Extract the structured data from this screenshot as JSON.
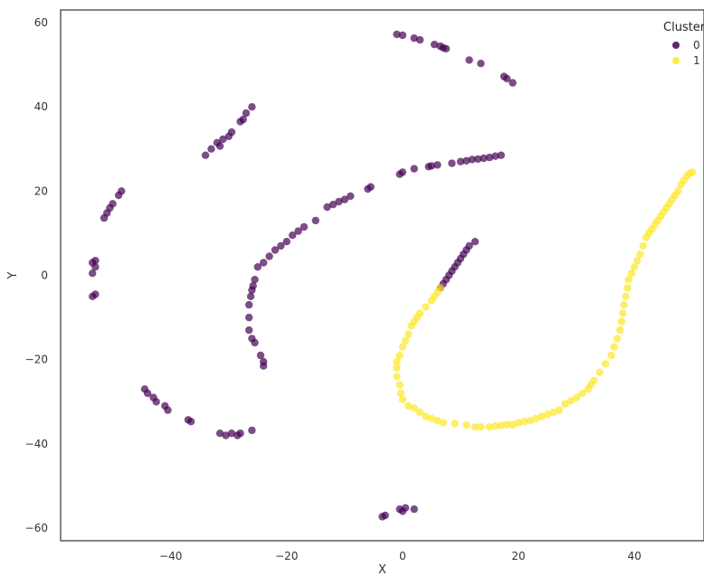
{
  "chart_data": {
    "type": "scatter",
    "title": "",
    "xlabel": "X",
    "ylabel": "Y",
    "xlim": [
      -59,
      52
    ],
    "ylim": [
      -63,
      63
    ],
    "xticks": [
      -40,
      -20,
      0,
      20,
      40
    ],
    "yticks": [
      -60,
      -40,
      -20,
      0,
      20,
      40,
      60
    ],
    "grid": false,
    "legend": {
      "title": "Cluster",
      "placement": "top-right"
    },
    "series": [
      {
        "name": "0",
        "color": "#440154",
        "points": [
          [
            -1,
            57.2
          ],
          [
            0,
            57
          ],
          [
            2,
            56.3
          ],
          [
            3,
            55.9
          ],
          [
            5.5,
            54.8
          ],
          [
            6.5,
            54.4
          ],
          [
            7,
            54
          ],
          [
            7.5,
            53.8
          ],
          [
            11.5,
            51.1
          ],
          [
            13.5,
            50.3
          ],
          [
            17.5,
            47.2
          ],
          [
            18,
            46.7
          ],
          [
            19,
            45.7
          ],
          [
            -26,
            40
          ],
          [
            -27,
            38.5
          ],
          [
            -27.5,
            37
          ],
          [
            -28,
            36.5
          ],
          [
            -29.5,
            34
          ],
          [
            -30,
            33
          ],
          [
            -31,
            32.3
          ],
          [
            -32,
            31.5
          ],
          [
            -31.5,
            30.7
          ],
          [
            -33,
            30
          ],
          [
            -34,
            28.5
          ],
          [
            -48.5,
            20
          ],
          [
            -49,
            19
          ],
          [
            -50,
            17
          ],
          [
            -50.5,
            16
          ],
          [
            -51,
            14.8
          ],
          [
            -51.5,
            13.6
          ],
          [
            -53,
            3.5
          ],
          [
            -53.5,
            3
          ],
          [
            -53,
            2
          ],
          [
            -53.5,
            0.5
          ],
          [
            -53,
            -4.5
          ],
          [
            -53.5,
            -5
          ],
          [
            17,
            28.5
          ],
          [
            16,
            28.3
          ],
          [
            15,
            28
          ],
          [
            14,
            27.8
          ],
          [
            13,
            27.6
          ],
          [
            12,
            27.5
          ],
          [
            11,
            27.2
          ],
          [
            10,
            27
          ],
          [
            8.5,
            26.6
          ],
          [
            6,
            26.2
          ],
          [
            5,
            26
          ],
          [
            4.5,
            25.8
          ],
          [
            2,
            25.3
          ],
          [
            0,
            24.5
          ],
          [
            -0.5,
            24
          ],
          [
            -5.5,
            21
          ],
          [
            -6,
            20.5
          ],
          [
            -9,
            18.8
          ],
          [
            -10,
            18
          ],
          [
            -11,
            17.5
          ],
          [
            -12,
            16.8
          ],
          [
            -13,
            16.2
          ],
          [
            -15,
            13
          ],
          [
            -17,
            11.5
          ],
          [
            -18,
            10.5
          ],
          [
            -19,
            9.5
          ],
          [
            -20,
            8
          ],
          [
            -21,
            7
          ],
          [
            -22,
            6
          ],
          [
            -23,
            4.5
          ],
          [
            -24,
            3
          ],
          [
            -25,
            2
          ],
          [
            -25.5,
            -1
          ],
          [
            -25.8,
            -2.5
          ],
          [
            -26,
            -3.5
          ],
          [
            -26.2,
            -5
          ],
          [
            -26.5,
            -7
          ],
          [
            -26.5,
            -10
          ],
          [
            -26.5,
            -13
          ],
          [
            -26,
            -15
          ],
          [
            -25.5,
            -16
          ],
          [
            -24.5,
            -19
          ],
          [
            -24,
            -20.5
          ],
          [
            -24,
            -21.5
          ],
          [
            12.5,
            8
          ],
          [
            11.5,
            7
          ],
          [
            11,
            6
          ],
          [
            10.5,
            5
          ],
          [
            10,
            4
          ],
          [
            9.5,
            3
          ],
          [
            9,
            2
          ],
          [
            8.5,
            1
          ],
          [
            8,
            0
          ],
          [
            7.5,
            -1
          ],
          [
            7,
            -2
          ],
          [
            6.5,
            -3
          ],
          [
            -44.5,
            -27
          ],
          [
            -44,
            -28
          ],
          [
            -43,
            -29
          ],
          [
            -42.5,
            -30
          ],
          [
            -41,
            -31
          ],
          [
            -40.5,
            -32
          ],
          [
            -37,
            -34.3
          ],
          [
            -36.5,
            -34.7
          ],
          [
            -31.5,
            -37.5
          ],
          [
            -30.5,
            -38
          ],
          [
            -29.5,
            -37.5
          ],
          [
            -28.5,
            -38
          ],
          [
            -28,
            -37.5
          ],
          [
            -26,
            -36.8
          ],
          [
            -0.5,
            -55.5
          ],
          [
            0,
            -56
          ],
          [
            0.5,
            -55.2
          ],
          [
            2,
            -55.5
          ],
          [
            -3,
            -57
          ],
          [
            -3.5,
            -57.3
          ]
        ]
      },
      {
        "name": "1",
        "color": "#fde725",
        "points": [
          [
            6.5,
            -3
          ],
          [
            6,
            -4
          ],
          [
            5.5,
            -5
          ],
          [
            5,
            -6
          ],
          [
            4,
            -7.5
          ],
          [
            3,
            -9
          ],
          [
            2.5,
            -10
          ],
          [
            2,
            -11
          ],
          [
            1.5,
            -12
          ],
          [
            1,
            -14
          ],
          [
            0.5,
            -15.5
          ],
          [
            0,
            -17
          ],
          [
            -0.5,
            -19
          ],
          [
            -1,
            -20.5
          ],
          [
            -1,
            -22
          ],
          [
            -1,
            -24
          ],
          [
            -0.5,
            -26
          ],
          [
            -0.3,
            -28
          ],
          [
            0,
            -29.5
          ],
          [
            1,
            -31
          ],
          [
            2,
            -31.5
          ],
          [
            3,
            -32.5
          ],
          [
            4,
            -33.5
          ],
          [
            5,
            -34
          ],
          [
            6,
            -34.5
          ],
          [
            7,
            -35
          ],
          [
            9,
            -35.2
          ],
          [
            11,
            -35.5
          ],
          [
            12.5,
            -36
          ],
          [
            13.5,
            -36
          ],
          [
            15,
            -36
          ],
          [
            16,
            -35.8
          ],
          [
            17,
            -35.6
          ],
          [
            18,
            -35.4
          ],
          [
            19,
            -35.5
          ],
          [
            20,
            -35
          ],
          [
            21,
            -34.7
          ],
          [
            22,
            -34.5
          ],
          [
            23,
            -34
          ],
          [
            24,
            -33.5
          ],
          [
            25,
            -33
          ],
          [
            26,
            -32.5
          ],
          [
            27,
            -32
          ],
          [
            28,
            -30.5
          ],
          [
            29,
            -29.8
          ],
          [
            30,
            -29
          ],
          [
            31,
            -28
          ],
          [
            32,
            -27
          ],
          [
            32.5,
            -26
          ],
          [
            33,
            -25
          ],
          [
            34,
            -23
          ],
          [
            35,
            -21
          ],
          [
            36,
            -19
          ],
          [
            36.5,
            -17
          ],
          [
            37,
            -15
          ],
          [
            37.5,
            -13
          ],
          [
            37.8,
            -11
          ],
          [
            38,
            -9
          ],
          [
            38.2,
            -7
          ],
          [
            38.5,
            -5
          ],
          [
            38.8,
            -3
          ],
          [
            39,
            -1
          ],
          [
            39.5,
            0.5
          ],
          [
            40,
            2
          ],
          [
            40.5,
            3.5
          ],
          [
            41,
            5
          ],
          [
            41.5,
            7
          ],
          [
            42,
            9
          ],
          [
            42.5,
            10
          ],
          [
            43,
            11
          ],
          [
            43.5,
            12
          ],
          [
            44,
            13
          ],
          [
            44.5,
            14
          ],
          [
            45,
            15
          ],
          [
            45.5,
            16
          ],
          [
            46,
            17
          ],
          [
            46.5,
            18
          ],
          [
            47,
            19
          ],
          [
            47.5,
            20
          ],
          [
            48,
            21.5
          ],
          [
            48.5,
            22.5
          ],
          [
            49,
            23.5
          ],
          [
            49.5,
            24.2
          ],
          [
            50,
            24.5
          ]
        ]
      }
    ]
  }
}
